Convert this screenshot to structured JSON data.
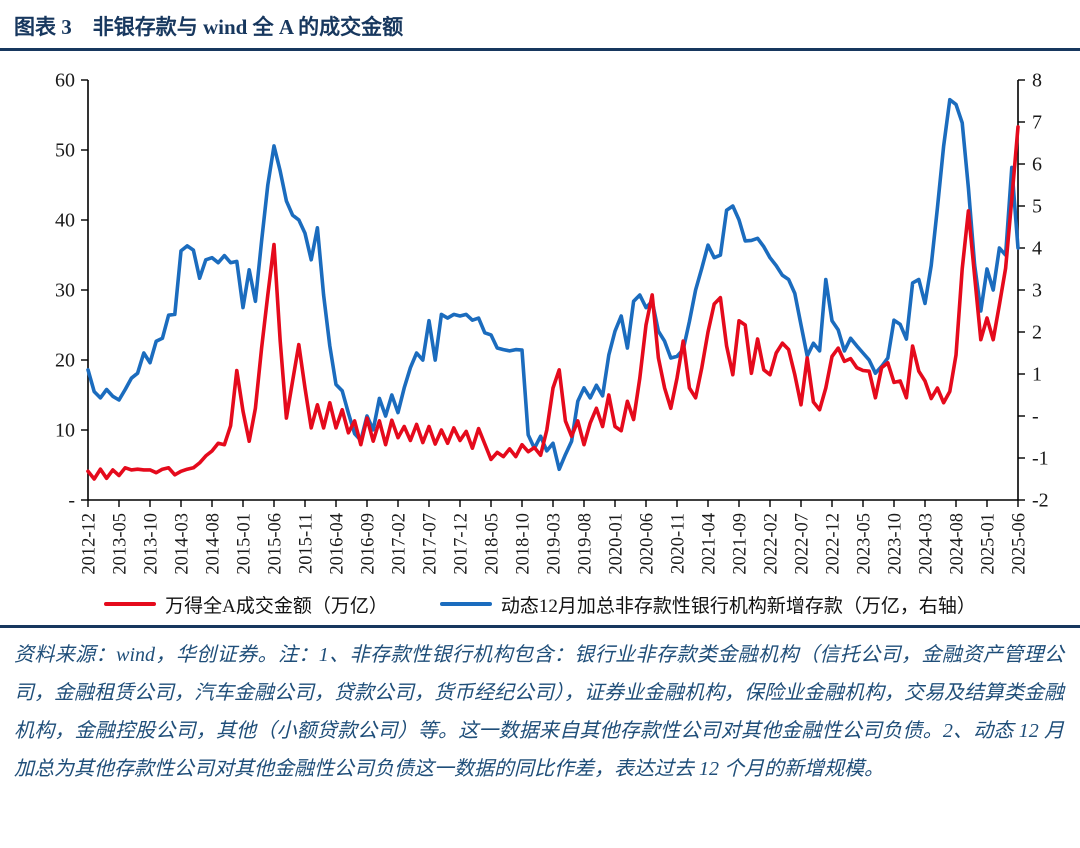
{
  "figure": {
    "title": "图表 3　非银存款与 wind 全 A 的成交金额",
    "source_note": "资料来源：wind，华创证券。注：1、非存款性银行机构包含：银行业非存款类金融机构（信托公司，金融资产管理公司，金融租赁公司，汽车金融公司，贷款公司，货币经纪公司），证券业金融机构，保险业金融机构，交易及结算类金融机构，金融控股公司，其他（小额贷款公司）等。这一数据来自其他存款性公司对其他金融性公司负债。2、动态 12 月加总为其他存款性公司对其他金融性公司负债这一数据的同比作差，表达过去 12 个月的新增规模。"
  },
  "colors": {
    "navy": "#17375e",
    "note": "#1f4e79"
  },
  "chart_data": {
    "type": "line",
    "title": "非银存款与wind全A的成交金额",
    "x_start": "2012-12",
    "x_end": "2025-06",
    "x_interval": "monthly",
    "x_tick_labels": [
      "2012-12",
      "2013-05",
      "2013-10",
      "2014-03",
      "2014-08",
      "2015-01",
      "2015-06",
      "2015-11",
      "2016-04",
      "2016-09",
      "2017-02",
      "2017-07",
      "2017-12",
      "2018-05",
      "2018-10",
      "2019-03",
      "2019-08",
      "2020-01",
      "2020-06",
      "2020-11",
      "2021-04",
      "2021-09",
      "2022-02",
      "2022-07",
      "2022-12",
      "2023-05",
      "2023-10",
      "2024-03",
      "2024-08",
      "2025-01",
      "2025-06"
    ],
    "left_axis": {
      "min": 0,
      "max": 60,
      "ticks": [
        "-",
        "10",
        "20",
        "30",
        "40",
        "50",
        "60"
      ]
    },
    "right_axis": {
      "min": -2,
      "max": 8,
      "ticks": [
        "-2",
        "-1",
        "-",
        "1",
        "2",
        "3",
        "4",
        "5",
        "6",
        "7",
        "8"
      ]
    },
    "grid": false,
    "legend_position": "bottom",
    "series": [
      {
        "name": "万得全A成交金额（万亿）",
        "axis": "left",
        "color": "#e50a1c",
        "values": [
          4.1,
          3.0,
          4.4,
          3.1,
          4.3,
          3.5,
          4.6,
          4.3,
          4.4,
          4.3,
          4.3,
          3.9,
          4.4,
          4.6,
          3.6,
          4.1,
          4.4,
          4.6,
          5.3,
          6.3,
          7.0,
          8.1,
          7.9,
          10.6,
          18.5,
          12.7,
          8.4,
          13.1,
          21.7,
          29.3,
          36.5,
          22.7,
          11.7,
          17.0,
          22.2,
          16.0,
          10.3,
          13.6,
          10.3,
          13.9,
          10.3,
          12.9,
          9.6,
          11.3,
          7.9,
          11.7,
          8.4,
          11.3,
          7.9,
          11.4,
          8.9,
          10.5,
          8.5,
          10.8,
          8.2,
          10.5,
          8.0,
          10.0,
          8.1,
          10.3,
          8.5,
          9.8,
          7.4,
          10.2,
          8.0,
          5.8,
          6.8,
          6.2,
          7.3,
          6.2,
          7.9,
          6.9,
          7.5,
          6.4,
          10.0,
          16.0,
          18.6,
          11.3,
          9.1,
          11.3,
          7.9,
          11.0,
          13.1,
          10.5,
          15.0,
          10.5,
          9.9,
          14.1,
          11.5,
          17.4,
          25.0,
          29.3,
          20.3,
          16.0,
          13.1,
          17.4,
          22.7,
          16.0,
          14.6,
          18.9,
          24.0,
          28.0,
          28.9,
          22.0,
          17.9,
          25.6,
          25.0,
          18.1,
          23.0,
          18.6,
          17.9,
          21.0,
          22.4,
          21.5,
          17.9,
          13.6,
          20.3,
          14.0,
          12.9,
          16.0,
          20.5,
          21.7,
          19.8,
          20.2,
          18.9,
          18.5,
          18.4,
          14.6,
          18.9,
          19.6,
          16.8,
          17.0,
          14.6,
          22.0,
          18.4,
          17.0,
          14.5,
          16.0,
          13.9,
          15.5,
          20.7,
          33.0,
          41.3,
          32.0,
          22.9,
          26.0,
          22.9,
          27.9,
          33.1,
          43.0,
          53.3
        ]
      },
      {
        "name": "动态12月加总非存款性银行机构新增存款（万亿，右轴）",
        "axis": "right",
        "color": "#1b6cbe",
        "values": [
          1.1,
          0.58,
          0.43,
          0.63,
          0.47,
          0.38,
          0.63,
          0.9,
          1.02,
          1.5,
          1.27,
          1.78,
          1.85,
          2.4,
          2.42,
          3.93,
          4.05,
          3.95,
          3.28,
          3.72,
          3.77,
          3.65,
          3.82,
          3.65,
          3.68,
          2.58,
          3.48,
          2.73,
          4.17,
          5.5,
          6.43,
          5.83,
          5.12,
          4.78,
          4.67,
          4.35,
          3.72,
          4.48,
          2.88,
          1.67,
          0.75,
          0.6,
          0.07,
          -0.42,
          -0.58,
          0.0,
          -0.33,
          0.42,
          0.0,
          0.5,
          0.08,
          0.67,
          1.15,
          1.5,
          1.33,
          2.27,
          1.33,
          2.42,
          2.33,
          2.42,
          2.38,
          2.42,
          2.28,
          2.33,
          1.98,
          1.93,
          1.62,
          1.58,
          1.55,
          1.58,
          1.57,
          -0.45,
          -0.77,
          -0.48,
          -0.83,
          -0.65,
          -1.27,
          -0.92,
          -0.6,
          0.35,
          0.67,
          0.43,
          0.73,
          0.48,
          1.45,
          2.02,
          2.38,
          1.62,
          2.73,
          2.88,
          2.58,
          2.73,
          2.02,
          1.78,
          1.38,
          1.42,
          1.58,
          2.25,
          3.0,
          3.52,
          4.07,
          3.77,
          3.83,
          4.9,
          5.0,
          4.67,
          4.17,
          4.18,
          4.23,
          4.03,
          3.77,
          3.58,
          3.35,
          3.25,
          2.92,
          2.17,
          1.43,
          1.73,
          1.55,
          3.25,
          2.27,
          2.05,
          1.55,
          1.85,
          1.67,
          1.5,
          1.33,
          1.02,
          1.18,
          1.38,
          2.28,
          2.18,
          1.83,
          3.17,
          3.25,
          2.68,
          3.58,
          4.95,
          6.42,
          7.53,
          7.42,
          6.98,
          5.43,
          3.6,
          2.5,
          3.5,
          3.0,
          4.0,
          3.83,
          5.92,
          4.0
        ]
      }
    ]
  }
}
